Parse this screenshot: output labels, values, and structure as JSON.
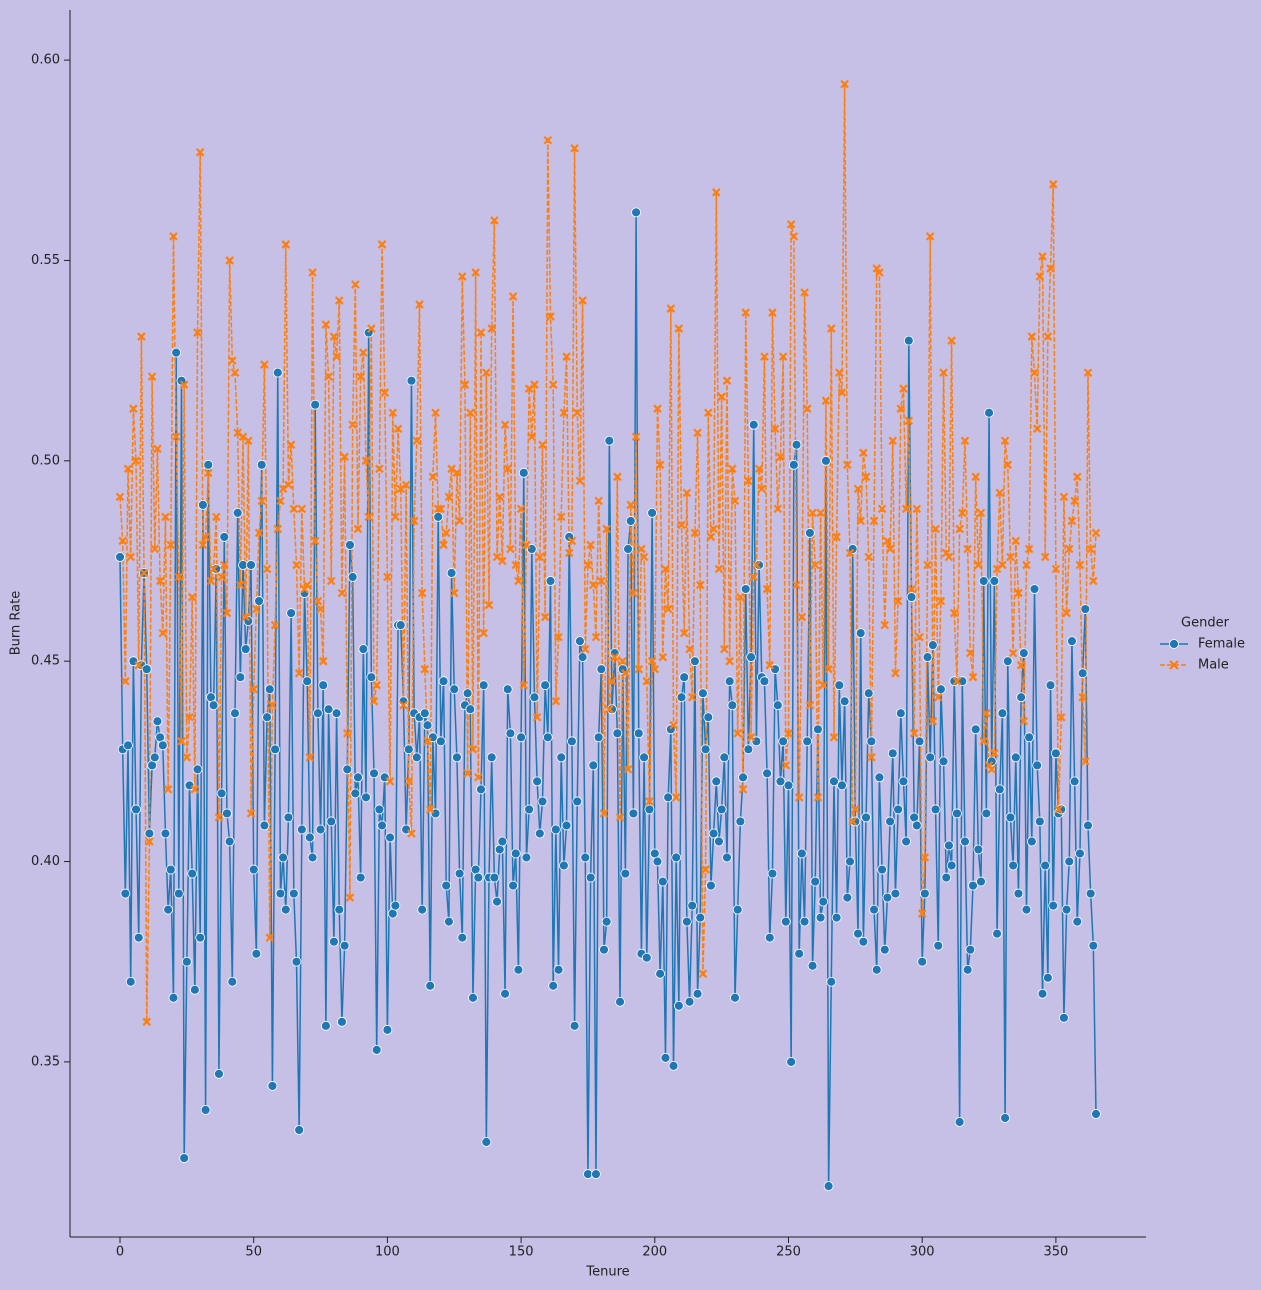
{
  "chart_data": {
    "type": "line",
    "x_label": "Tenure",
    "y_label": "Burn Rate",
    "legend_title": "Gender",
    "legend": "right",
    "xlim": [
      -18.7,
      383.7
    ],
    "ylim": [
      0.3063,
      0.6125
    ],
    "xticks": [
      0,
      50,
      100,
      150,
      200,
      250,
      300,
      350
    ],
    "yticks": [
      0.35,
      {
        "value": 0.4,
        "label": "0.40"
      },
      0.45,
      {
        "value": 0.5,
        "label": "0.50"
      },
      0.55,
      {
        "value": 0.6,
        "label": "0.60"
      }
    ],
    "x": [
      0,
      1,
      2,
      3,
      4,
      5,
      6,
      7,
      8,
      9,
      10,
      11,
      12,
      13,
      14,
      15,
      16,
      17,
      18,
      19,
      20,
      21,
      22,
      23,
      24,
      25,
      26,
      27,
      28,
      29,
      30,
      31,
      32,
      33,
      34,
      35,
      36,
      37,
      38,
      39,
      40,
      41,
      42,
      43,
      44,
      45,
      46,
      47,
      48,
      49,
      50,
      51,
      52,
      53,
      54,
      55,
      56,
      57,
      58,
      59,
      60,
      61,
      62,
      63,
      64,
      65,
      66,
      67,
      68,
      69,
      70,
      71,
      72,
      73,
      74,
      75,
      76,
      77,
      78,
      79,
      80,
      81,
      82,
      83,
      84,
      85,
      86,
      87,
      88,
      89,
      90,
      91,
      92,
      93,
      94,
      95,
      96,
      97,
      98,
      99,
      100,
      101,
      102,
      103,
      104,
      105,
      106,
      107,
      108,
      109,
      110,
      111,
      112,
      113,
      114,
      115,
      116,
      117,
      118,
      119,
      120,
      121,
      122,
      123,
      124,
      125,
      126,
      127,
      128,
      129,
      130,
      131,
      132,
      133,
      134,
      135,
      136,
      137,
      138,
      139,
      140,
      141,
      142,
      143,
      144,
      145,
      146,
      147,
      148,
      149,
      150,
      151,
      152,
      153,
      154,
      155,
      156,
      157,
      158,
      159,
      160,
      161,
      162,
      163,
      164,
      165,
      166,
      167,
      168,
      169,
      170,
      171,
      172,
      173,
      174,
      175,
      176,
      177,
      178,
      179,
      180,
      181,
      182,
      183,
      184,
      185,
      186,
      187,
      188,
      189,
      190,
      191,
      192,
      193,
      194,
      195,
      196,
      197,
      198,
      199,
      200,
      201,
      202,
      203,
      204,
      205,
      206,
      207,
      208,
      209,
      210,
      211,
      212,
      213,
      214,
      215,
      216,
      217,
      218,
      219,
      220,
      221,
      222,
      223,
      224,
      225,
      226,
      227,
      228,
      229,
      230,
      231,
      232,
      233,
      234,
      235,
      236,
      237,
      238,
      239,
      240,
      241,
      242,
      243,
      244,
      245,
      246,
      247,
      248,
      249,
      250,
      251,
      252,
      253,
      254,
      255,
      256,
      257,
      258,
      259,
      260,
      261,
      262,
      263,
      264,
      265,
      266,
      267,
      268,
      269,
      270,
      271,
      272,
      273,
      274,
      275,
      276,
      277,
      278,
      279,
      280,
      281,
      282,
      283,
      284,
      285,
      286,
      287,
      288,
      289,
      290,
      291,
      292,
      293,
      294,
      295,
      296,
      297,
      298,
      299,
      300,
      301,
      302,
      303,
      304,
      305,
      306,
      307,
      308,
      309,
      310,
      311,
      312,
      313,
      314,
      315,
      316,
      317,
      318,
      319,
      320,
      321,
      322,
      323,
      324,
      325,
      326,
      327,
      328,
      329,
      330,
      331,
      332,
      333,
      334,
      335,
      336,
      337,
      338,
      339,
      340,
      341,
      342,
      343,
      344,
      345,
      346,
      347,
      348,
      349,
      350,
      351,
      352,
      353,
      354,
      355,
      356,
      357,
      358,
      359,
      360,
      361,
      362,
      363,
      364,
      365
    ],
    "series": [
      {
        "name": "Female",
        "color": "#1f77b4",
        "marker": "circle",
        "dashed": false,
        "values": [
          0.476,
          0.428,
          0.392,
          0.429,
          0.37,
          0.45,
          0.413,
          0.381,
          0.449,
          0.472,
          0.448,
          0.407,
          0.424,
          0.426,
          0.435,
          0.431,
          0.429,
          0.407,
          0.388,
          0.398,
          0.366,
          0.527,
          0.392,
          0.52,
          0.326,
          0.375,
          0.419,
          0.397,
          0.368,
          0.423,
          0.381,
          0.489,
          0.338,
          0.499,
          0.441,
          0.439,
          0.473,
          0.347,
          0.417,
          0.481,
          0.412,
          0.405,
          0.37,
          0.437,
          0.487,
          0.446,
          0.474,
          0.453,
          0.46,
          0.474,
          0.398,
          0.377,
          0.465,
          0.499,
          0.409,
          0.436,
          0.443,
          0.344,
          0.428,
          0.522,
          0.392,
          0.401,
          0.388,
          0.411,
          0.462,
          0.392,
          0.375,
          0.333,
          0.408,
          0.467,
          0.445,
          0.406,
          0.401,
          0.514,
          0.437,
          0.408,
          0.444,
          0.359,
          0.438,
          0.41,
          0.38,
          0.437,
          0.388,
          0.36,
          0.379,
          0.423,
          0.479,
          0.471,
          0.417,
          0.421,
          0.396,
          0.453,
          0.416,
          0.532,
          0.446,
          0.422,
          0.353,
          0.413,
          0.409,
          0.421,
          0.358,
          0.406,
          0.387,
          0.389,
          0.459,
          0.459,
          0.44,
          0.408,
          0.428,
          0.52,
          0.437,
          0.426,
          0.436,
          0.388,
          0.437,
          0.434,
          0.369,
          0.431,
          0.412,
          0.486,
          0.43,
          0.445,
          0.394,
          0.385,
          0.472,
          0.443,
          0.426,
          0.397,
          0.381,
          0.439,
          0.442,
          0.438,
          0.366,
          0.398,
          0.396,
          0.418,
          0.444,
          0.33,
          0.396,
          0.426,
          0.396,
          0.39,
          0.403,
          0.405,
          0.367,
          0.443,
          0.432,
          0.394,
          0.402,
          0.373,
          0.431,
          0.497,
          0.401,
          0.413,
          0.478,
          0.441,
          0.42,
          0.407,
          0.415,
          0.444,
          0.431,
          0.47,
          0.369,
          0.408,
          0.373,
          0.426,
          0.399,
          0.409,
          0.481,
          0.43,
          0.359,
          0.415,
          0.455,
          0.451,
          0.401,
          0.322,
          0.396,
          0.424,
          0.322,
          0.431,
          0.448,
          0.378,
          0.385,
          0.505,
          0.438,
          0.452,
          0.432,
          0.365,
          0.448,
          0.397,
          0.478,
          0.485,
          0.412,
          0.562,
          0.432,
          0.377,
          0.426,
          0.376,
          0.413,
          0.487,
          0.402,
          0.4,
          0.372,
          0.395,
          0.351,
          0.416,
          0.433,
          0.349,
          0.401,
          0.364,
          0.441,
          0.446,
          0.385,
          0.365,
          0.389,
          0.45,
          0.367,
          0.386,
          0.442,
          0.428,
          0.436,
          0.394,
          0.407,
          0.42,
          0.405,
          0.413,
          0.426,
          0.401,
          0.445,
          0.439,
          0.366,
          0.388,
          0.41,
          0.421,
          0.468,
          0.428,
          0.451,
          0.509,
          0.43,
          0.474,
          0.446,
          0.445,
          0.422,
          0.381,
          0.397,
          0.448,
          0.439,
          0.42,
          0.43,
          0.385,
          0.419,
          0.35,
          0.499,
          0.504,
          0.377,
          0.402,
          0.385,
          0.43,
          0.482,
          0.374,
          0.395,
          0.433,
          0.386,
          0.39,
          0.5,
          0.319,
          0.37,
          0.42,
          0.386,
          0.444,
          0.419,
          0.44,
          0.391,
          0.4,
          0.478,
          0.41,
          0.382,
          0.457,
          0.38,
          0.411,
          0.442,
          0.43,
          0.388,
          0.373,
          0.421,
          0.398,
          0.378,
          0.391,
          0.41,
          0.427,
          0.392,
          0.413,
          0.437,
          0.42,
          0.405,
          0.53,
          0.466,
          0.411,
          0.409,
          0.43,
          0.375,
          0.392,
          0.451,
          0.426,
          0.454,
          0.413,
          0.379,
          0.443,
          0.425,
          0.396,
          0.404,
          0.399,
          0.445,
          0.412,
          0.335,
          0.445,
          0.405,
          0.373,
          0.378,
          0.394,
          0.433,
          0.403,
          0.395,
          0.47,
          0.412,
          0.512,
          0.425,
          0.47,
          0.382,
          0.418,
          0.437,
          0.336,
          0.45,
          0.411,
          0.399,
          0.426,
          0.392,
          0.441,
          0.452,
          0.388,
          0.431,
          0.405,
          0.468,
          0.424,
          0.41,
          0.367,
          0.399,
          0.371,
          0.444,
          0.389,
          0.427,
          0.412,
          0.413,
          0.361,
          0.388,
          0.4,
          0.455,
          0.42,
          0.385,
          0.402,
          0.447,
          0.463,
          0.409,
          0.392,
          0.379,
          0.337
        ]
      },
      {
        "name": "Male",
        "color": "#ff7f0e",
        "marker": "x",
        "dashed": true,
        "values": [
          0.491,
          0.48,
          0.445,
          0.498,
          0.476,
          0.513,
          0.5,
          0.449,
          0.531,
          0.472,
          0.36,
          0.405,
          0.521,
          0.478,
          0.503,
          0.47,
          0.457,
          0.486,
          0.418,
          0.479,
          0.556,
          0.506,
          0.471,
          0.43,
          0.519,
          0.426,
          0.436,
          0.466,
          0.418,
          0.532,
          0.577,
          0.479,
          0.481,
          0.497,
          0.47,
          0.473,
          0.486,
          0.411,
          0.471,
          0.474,
          0.462,
          0.55,
          0.525,
          0.522,
          0.507,
          0.469,
          0.506,
          0.461,
          0.505,
          0.412,
          0.443,
          0.463,
          0.482,
          0.49,
          0.524,
          0.473,
          0.381,
          0.439,
          0.459,
          0.483,
          0.49,
          0.493,
          0.554,
          0.494,
          0.504,
          0.488,
          0.474,
          0.447,
          0.488,
          0.468,
          0.469,
          0.426,
          0.547,
          0.48,
          0.465,
          0.463,
          0.45,
          0.534,
          0.521,
          0.47,
          0.531,
          0.526,
          0.54,
          0.467,
          0.501,
          0.432,
          0.391,
          0.509,
          0.544,
          0.483,
          0.521,
          0.527,
          0.5,
          0.486,
          0.533,
          0.44,
          0.444,
          0.498,
          0.554,
          0.517,
          0.471,
          0.42,
          0.512,
          0.486,
          0.508,
          0.493,
          0.439,
          0.494,
          0.42,
          0.407,
          0.485,
          0.505,
          0.539,
          0.467,
          0.448,
          0.43,
          0.413,
          0.496,
          0.512,
          0.488,
          0.488,
          0.479,
          0.482,
          0.491,
          0.498,
          0.467,
          0.497,
          0.485,
          0.546,
          0.519,
          0.422,
          0.512,
          0.428,
          0.547,
          0.421,
          0.532,
          0.457,
          0.522,
          0.464,
          0.533,
          0.56,
          0.476,
          0.491,
          0.475,
          0.509,
          0.498,
          0.478,
          0.541,
          0.474,
          0.47,
          0.488,
          0.444,
          0.479,
          0.518,
          0.506,
          0.519,
          0.436,
          0.476,
          0.504,
          0.461,
          0.58,
          0.536,
          0.519,
          0.44,
          0.456,
          0.486,
          0.512,
          0.526,
          0.477,
          0.48,
          0.578,
          0.512,
          0.495,
          0.54,
          0.453,
          0.474,
          0.479,
          0.469,
          0.456,
          0.49,
          0.47,
          0.412,
          0.483,
          0.438,
          0.445,
          0.451,
          0.496,
          0.411,
          0.45,
          0.447,
          0.423,
          0.489,
          0.467,
          0.506,
          0.448,
          0.478,
          0.476,
          0.445,
          0.415,
          0.45,
          0.448,
          0.513,
          0.499,
          0.451,
          0.473,
          0.463,
          0.538,
          0.434,
          0.416,
          0.533,
          0.484,
          0.457,
          0.492,
          0.453,
          0.441,
          0.482,
          0.507,
          0.469,
          0.372,
          0.398,
          0.512,
          0.481,
          0.483,
          0.567,
          0.473,
          0.516,
          0.453,
          0.52,
          0.45,
          0.498,
          0.49,
          0.432,
          0.466,
          0.418,
          0.537,
          0.495,
          0.431,
          0.471,
          0.474,
          0.498,
          0.493,
          0.526,
          0.468,
          0.449,
          0.537,
          0.508,
          0.488,
          0.501,
          0.526,
          0.424,
          0.432,
          0.559,
          0.556,
          0.469,
          0.416,
          0.461,
          0.542,
          0.513,
          0.439,
          0.487,
          0.474,
          0.416,
          0.487,
          0.444,
          0.515,
          0.448,
          0.533,
          0.431,
          0.481,
          0.522,
          0.517,
          0.594,
          0.499,
          0.477,
          0.41,
          0.413,
          0.493,
          0.485,
          0.502,
          0.496,
          0.476,
          0.426,
          0.485,
          0.548,
          0.547,
          0.488,
          0.459,
          0.48,
          0.478,
          0.505,
          0.447,
          0.465,
          0.513,
          0.518,
          0.488,
          0.51,
          0.468,
          0.432,
          0.488,
          0.456,
          0.387,
          0.401,
          0.474,
          0.556,
          0.435,
          0.483,
          0.441,
          0.465,
          0.522,
          0.477,
          0.476,
          0.53,
          0.462,
          0.445,
          0.483,
          0.487,
          0.505,
          0.478,
          0.452,
          0.446,
          0.496,
          0.474,
          0.487,
          0.43,
          0.437,
          0.424,
          0.423,
          0.427,
          0.473,
          0.492,
          0.474,
          0.505,
          0.499,
          0.476,
          0.452,
          0.48,
          0.467,
          0.449,
          0.435,
          0.474,
          0.478,
          0.531,
          0.522,
          0.508,
          0.546,
          0.551,
          0.476,
          0.531,
          0.548,
          0.569,
          0.473,
          0.413,
          0.436,
          0.491,
          0.462,
          0.478,
          0.485,
          0.49,
          0.496,
          0.474,
          0.441,
          0.425,
          0.522,
          0.478,
          0.47,
          0.482
        ]
      }
    ]
  }
}
